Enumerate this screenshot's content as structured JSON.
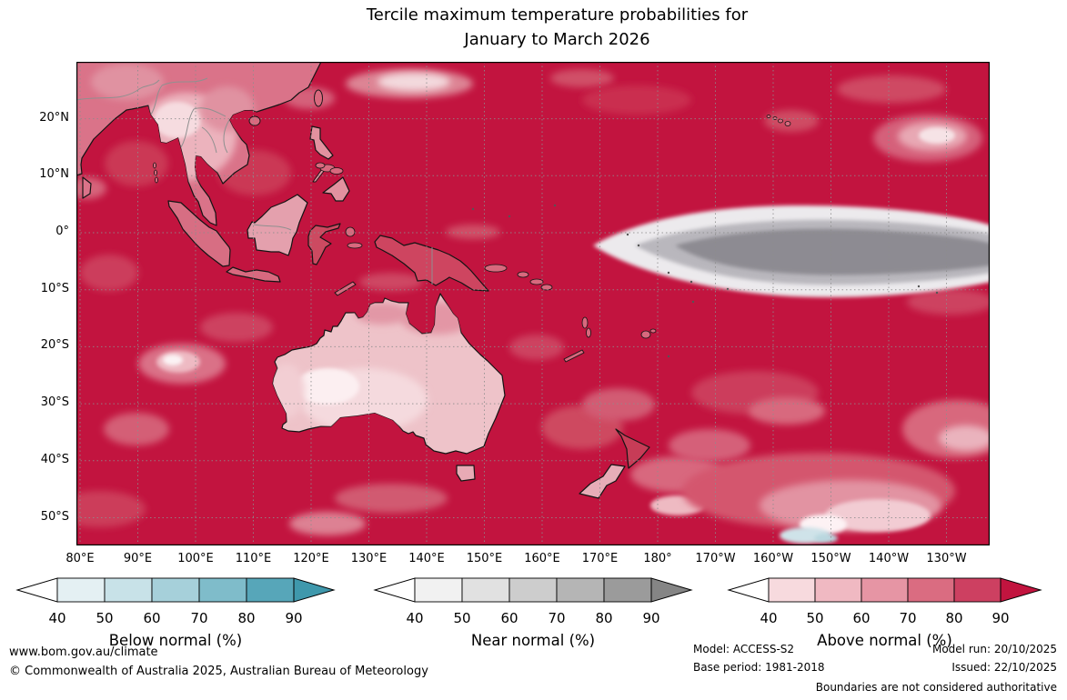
{
  "title": {
    "line1": "Tercile maximum temperature probabilities for",
    "line2": "January to March 2026"
  },
  "map": {
    "lat_labels": [
      "20°N",
      "10°N",
      "0°",
      "10°S",
      "20°S",
      "30°S",
      "40°S",
      "50°S"
    ],
    "lon_labels": [
      "80°E",
      "90°E",
      "100°E",
      "110°E",
      "120°E",
      "130°E",
      "140°E",
      "150°E",
      "160°E",
      "170°E",
      "180°",
      "170°W",
      "160°W",
      "150°W",
      "140°W",
      "130°W"
    ]
  },
  "legend": {
    "scales": [
      {
        "id": "below",
        "label": "Below normal (%)",
        "ticks": [
          "40",
          "50",
          "60",
          "70",
          "80",
          "90"
        ],
        "segment_colors": [
          "#e4f0f3",
          "#c8e2e8",
          "#a6d0da",
          "#7fbcca",
          "#57a6b9"
        ],
        "arrow_color": "#3f98ac",
        "under_color": "#ffffff"
      },
      {
        "id": "near",
        "label": "Near normal (%)",
        "ticks": [
          "40",
          "50",
          "60",
          "70",
          "80",
          "90"
        ],
        "segment_colors": [
          "#f1f1f1",
          "#e1e1e1",
          "#cdcdcd",
          "#b5b5b5",
          "#9b9b9b"
        ],
        "arrow_color": "#858585",
        "under_color": "#ffffff"
      },
      {
        "id": "above",
        "label": "Above normal (%)",
        "ticks": [
          "40",
          "50",
          "60",
          "70",
          "80",
          "90"
        ],
        "segment_colors": [
          "#f7dade",
          "#f0b9c2",
          "#e695a4",
          "#da6c81",
          "#cd4061"
        ],
        "arrow_color": "#c2143f",
        "under_color": "#ffffff"
      }
    ]
  },
  "footer": {
    "url": "www.bom.gov.au/climate",
    "copyright": "© Commonwealth of Australia 2025, Australian Bureau of Meteorology",
    "model_label": "Model: ACCESS-S2",
    "base_period_label": "Base period: 1981-2018",
    "model_run_label": "Model run: 20/10/2025",
    "issued_label": "Issued: 22/10/2025",
    "boundaries_note": "Boundaries are not considered authoritative"
  },
  "chart_data": {
    "type": "heatmap",
    "title": "Tercile maximum temperature probabilities for January to March 2026",
    "domain_extent": "approx 80°E to 125°W, 30°N to 55°S (Australia, Maritime Continent, western-central Pacific)",
    "lat_ticks": [
      "20°N",
      "10°N",
      "0°",
      "10°S",
      "20°S",
      "30°S",
      "40°S",
      "50°S"
    ],
    "lon_ticks": [
      "80°E",
      "90°E",
      "100°E",
      "110°E",
      "120°E",
      "130°E",
      "140°E",
      "150°E",
      "160°E",
      "170°E",
      "180°",
      "170°W",
      "160°W",
      "150°W",
      "140°W",
      "130°W"
    ],
    "grid": true,
    "legend_position": "bottom",
    "colorbars": [
      {
        "label": "Below normal (%)",
        "ticks": [
          40,
          50,
          60,
          70,
          80,
          90
        ],
        "colors_low_to_high": [
          "#ffffff",
          "#e4f0f3",
          "#c8e2e8",
          "#a6d0da",
          "#7fbcca",
          "#57a6b9",
          "#3f98ac"
        ]
      },
      {
        "label": "Near normal (%)",
        "ticks": [
          40,
          50,
          60,
          70,
          80,
          90
        ],
        "colors_low_to_high": [
          "#ffffff",
          "#f1f1f1",
          "#e1e1e1",
          "#cdcdcd",
          "#b5b5b5",
          "#9b9b9b",
          "#858585"
        ]
      },
      {
        "label": "Above normal (%)",
        "ticks": [
          40,
          50,
          60,
          70,
          80,
          90
        ],
        "colors_low_to_high": [
          "#ffffff",
          "#f7dade",
          "#f0b9c2",
          "#e695a4",
          "#da6c81",
          "#cd4061",
          "#c2143f"
        ]
      }
    ],
    "palette": {
      "dominant_field_color": "#c2143f",
      "near_normal_core": "#8d8b92",
      "australia_interior": "#eec3c9"
    },
    "features": [
      {
        "region": "Most of the ocean domain (Indian Ocean, Maritime Continent seas, western Pacific, Coral and Tasman Seas)",
        "category": "above normal",
        "probability_pct": ">90"
      },
      {
        "region": "Central equatorial Pacific tongue from ~170°E eastward to map edge, ~8°N-12°S",
        "category": "near normal",
        "probability_pct": "50-80, darkest grey core ~80"
      },
      {
        "region": "Australian interior",
        "category": "above normal",
        "probability_pct": "40-60"
      },
      {
        "region": "Northern and eastern Australian coastal fringe",
        "category": "above normal",
        "probability_pct": "60-80"
      },
      {
        "region": "Mainland Southeast Asia and Borneo",
        "category": "above normal",
        "probability_pct": "40-70"
      },
      {
        "region": "South Island of New Zealand and Tasmania",
        "category": "above normal",
        "probability_pct": "50-70"
      },
      {
        "region": "Southern Ocean south-east of New Zealand (~170-140°W, 45-55°S)",
        "category": "above normal",
        "probability_pct": "40-70 with small pale/below-normal pocket near 155°W 53°S"
      },
      {
        "region": "Subtropical North Pacific patch near 135°W 20°N",
        "category": "above normal",
        "probability_pct": "50-70"
      }
    ]
  }
}
